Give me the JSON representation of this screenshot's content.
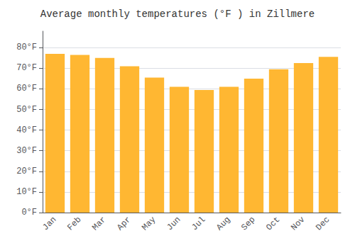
{
  "chart_data": {
    "type": "bar",
    "title": "Average monthly temperatures (°F ) in Zillmere",
    "categories": [
      "Jan",
      "Feb",
      "Mar",
      "Apr",
      "May",
      "Jun",
      "Jul",
      "Aug",
      "Sep",
      "Oct",
      "Nov",
      "Dec"
    ],
    "values": [
      77,
      76.5,
      75,
      71,
      65.5,
      61,
      59.5,
      61,
      65,
      69.5,
      72.5,
      75.5
    ],
    "color": "#FFB732",
    "ylim": [
      0,
      88
    ],
    "yticks": [
      {
        "value": 0,
        "label": "0°F"
      },
      {
        "value": 10,
        "label": "10°F"
      },
      {
        "value": 20,
        "label": "20°F"
      },
      {
        "value": 30,
        "label": "30°F"
      },
      {
        "value": 40,
        "label": "40°F"
      },
      {
        "value": 50,
        "label": "50°F"
      },
      {
        "value": 60,
        "label": "60°F"
      },
      {
        "value": 70,
        "label": "70°F"
      },
      {
        "value": 80,
        "label": "80°F"
      }
    ],
    "grid": true
  }
}
